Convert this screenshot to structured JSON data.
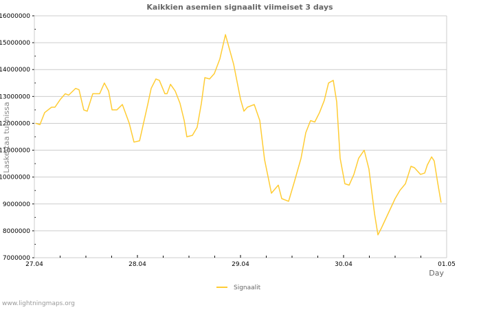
{
  "chart_data": {
    "type": "line",
    "title": "Kaikkien asemien signaalit viimeiset 3 days",
    "xlabel": "Day",
    "ylabel": "Laskettaa tunnissa",
    "x_unit": "hours since 27.04 00:00",
    "xlim": [
      0,
      96
    ],
    "ylim": [
      7000000,
      16000000
    ],
    "x_ticks": [
      "27.04",
      "28.04",
      "29.04",
      "30.04",
      "01.05"
    ],
    "y_ticks": [
      "7000000",
      "8000000",
      "9000000",
      "10000000",
      "11000000",
      "12000000",
      "13000000",
      "14000000",
      "15000000",
      "16000000"
    ],
    "grid": true,
    "legend_position": "bottom-center",
    "series": [
      {
        "name": "Signaalit",
        "color": "#ffcc33",
        "points": [
          [
            0.3,
            12000000
          ],
          [
            1.3,
            11950000
          ],
          [
            2.4,
            12400000
          ],
          [
            4.0,
            12600000
          ],
          [
            4.8,
            12600000
          ],
          [
            6.1,
            12900000
          ],
          [
            7.2,
            13100000
          ],
          [
            8.0,
            13050000
          ],
          [
            9.6,
            13300000
          ],
          [
            10.4,
            13250000
          ],
          [
            11.5,
            12500000
          ],
          [
            12.3,
            12450000
          ],
          [
            13.6,
            13100000
          ],
          [
            14.4,
            13100000
          ],
          [
            15.2,
            13100000
          ],
          [
            16.3,
            13500000
          ],
          [
            17.3,
            13200000
          ],
          [
            18.1,
            12500000
          ],
          [
            19.2,
            12500000
          ],
          [
            20.5,
            12700000
          ],
          [
            22.1,
            12000000
          ],
          [
            23.2,
            11300000
          ],
          [
            24.5,
            11350000
          ],
          [
            26.4,
            12700000
          ],
          [
            27.2,
            13300000
          ],
          [
            28.3,
            13650000
          ],
          [
            29.1,
            13600000
          ],
          [
            30.4,
            13100000
          ],
          [
            30.9,
            13100000
          ],
          [
            31.7,
            13450000
          ],
          [
            32.8,
            13200000
          ],
          [
            33.9,
            12750000
          ],
          [
            34.9,
            12100000
          ],
          [
            35.5,
            11500000
          ],
          [
            36.8,
            11550000
          ],
          [
            37.9,
            11850000
          ],
          [
            38.9,
            12750000
          ],
          [
            39.7,
            13700000
          ],
          [
            40.8,
            13650000
          ],
          [
            41.9,
            13850000
          ],
          [
            43.2,
            14400000
          ],
          [
            44.5,
            15300000
          ],
          [
            46.4,
            14200000
          ],
          [
            48.0,
            12900000
          ],
          [
            48.8,
            12450000
          ],
          [
            49.6,
            12600000
          ],
          [
            51.2,
            12700000
          ],
          [
            52.5,
            12100000
          ],
          [
            53.6,
            10650000
          ],
          [
            55.2,
            9400000
          ],
          [
            56.8,
            9700000
          ],
          [
            57.6,
            9200000
          ],
          [
            59.2,
            9100000
          ],
          [
            60.5,
            9800000
          ],
          [
            62.1,
            10700000
          ],
          [
            63.2,
            11650000
          ],
          [
            64.3,
            12100000
          ],
          [
            65.3,
            12050000
          ],
          [
            66.4,
            12400000
          ],
          [
            67.5,
            12850000
          ],
          [
            68.5,
            13500000
          ],
          [
            69.6,
            13600000
          ],
          [
            70.4,
            12800000
          ],
          [
            71.2,
            10700000
          ],
          [
            72.3,
            9750000
          ],
          [
            73.3,
            9700000
          ],
          [
            74.4,
            10100000
          ],
          [
            75.5,
            10700000
          ],
          [
            76.8,
            11000000
          ],
          [
            77.9,
            10300000
          ],
          [
            79.2,
            8650000
          ],
          [
            80.0,
            7850000
          ],
          [
            80.8,
            8100000
          ],
          [
            82.4,
            8650000
          ],
          [
            84.0,
            9200000
          ],
          [
            85.1,
            9500000
          ],
          [
            86.4,
            9750000
          ],
          [
            87.7,
            10400000
          ],
          [
            88.5,
            10350000
          ],
          [
            89.9,
            10100000
          ],
          [
            90.9,
            10150000
          ],
          [
            91.5,
            10450000
          ],
          [
            92.5,
            10750000
          ],
          [
            93.1,
            10600000
          ],
          [
            93.9,
            9800000
          ],
          [
            94.7,
            9050000
          ]
        ]
      }
    ]
  },
  "footer": "www.lightningmaps.org"
}
